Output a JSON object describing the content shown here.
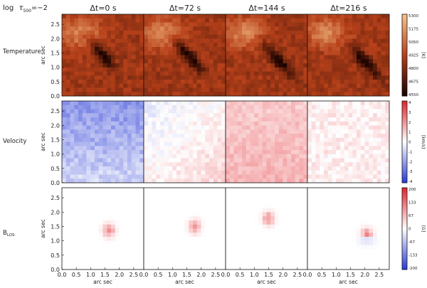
{
  "header": {
    "log": "log",
    "tau": "τ",
    "subscript": "500",
    "eq": "=−2"
  },
  "columns": [
    {
      "dt": "Δt=0  s"
    },
    {
      "dt": "Δt=72  s"
    },
    {
      "dt": "Δt=144  s"
    },
    {
      "dt": "Δt=216  s"
    }
  ],
  "rows": [
    {
      "label": "Temperature",
      "colormap": "thermal",
      "colorbar": {
        "ticks": [
          "5300",
          "5175",
          "5050",
          "4925",
          "4800",
          "4675",
          "4550"
        ],
        "unit": "[K]"
      }
    },
    {
      "label": "Velocity",
      "colormap": "diverging",
      "colorbar": {
        "ticks": [
          "4",
          "3",
          "2",
          "1",
          "0",
          "-1",
          "-2",
          "-3",
          "-4"
        ],
        "unit": "[km/s]"
      }
    },
    {
      "label_main": "B",
      "label_sub": "LOS",
      "colormap": "diverging",
      "colorbar": {
        "ticks": [
          "200",
          "133",
          "67",
          "0",
          "-67",
          "-133",
          "-200"
        ],
        "unit": "[G]"
      }
    }
  ],
  "axes": {
    "y_ticks": [
      "2.5",
      "2.0",
      "1.5",
      "1.0",
      "0.5",
      "0.0"
    ],
    "x_ticks": [
      "0.0",
      "0.5",
      "1.0",
      "1.5",
      "2.0",
      "2.5"
    ],
    "y_label": "arc sec",
    "x_label": "arc sec"
  },
  "colors": {
    "thermal_hot": "#f7c38a",
    "thermal_mid": "#b7411a",
    "thermal_cold": "#1a0300",
    "blue": "#2b3dd6",
    "red": "#e4262c",
    "white": "#ffffff"
  }
}
